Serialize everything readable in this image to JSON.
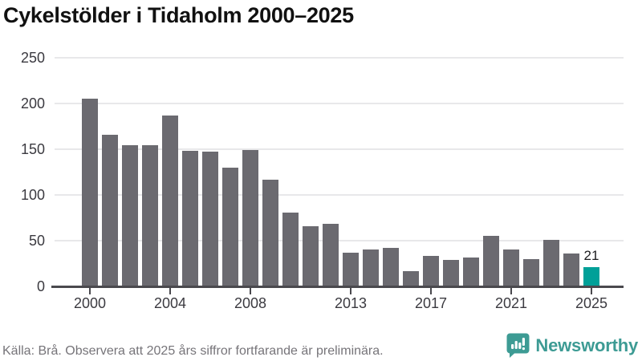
{
  "title": "Cykelstölder i Tidaholm 2000–2025",
  "chart_data": {
    "type": "bar",
    "x": [
      2000,
      2001,
      2002,
      2003,
      2004,
      2005,
      2006,
      2007,
      2008,
      2009,
      2010,
      2011,
      2012,
      2013,
      2014,
      2015,
      2016,
      2017,
      2018,
      2019,
      2020,
      2021,
      2022,
      2023,
      2024,
      2025
    ],
    "values": [
      205,
      166,
      154,
      154,
      187,
      148,
      147,
      130,
      149,
      117,
      81,
      66,
      68,
      37,
      40,
      42,
      17,
      33,
      29,
      32,
      55,
      40,
      30,
      51,
      36,
      21
    ],
    "title": "Cykelstölder i Tidaholm 2000–2025",
    "xlabel": "",
    "ylabel": "",
    "ylim": [
      0,
      250
    ],
    "yticks": [
      0,
      50,
      100,
      150,
      200,
      250
    ],
    "xticks": [
      2000,
      2004,
      2008,
      2013,
      2017,
      2021,
      2025
    ],
    "grid": "horizontal",
    "legend": "none",
    "bar_color": "#6b6a70",
    "highlight_color": "#00a098",
    "highlight_year": 2025,
    "annotation": {
      "text": "21",
      "year": 2025
    }
  },
  "footer": {
    "source": "Källa: Brå. Observera att 2025 års siffror fortfarande är preliminära.",
    "brand": "Newsworthy"
  }
}
